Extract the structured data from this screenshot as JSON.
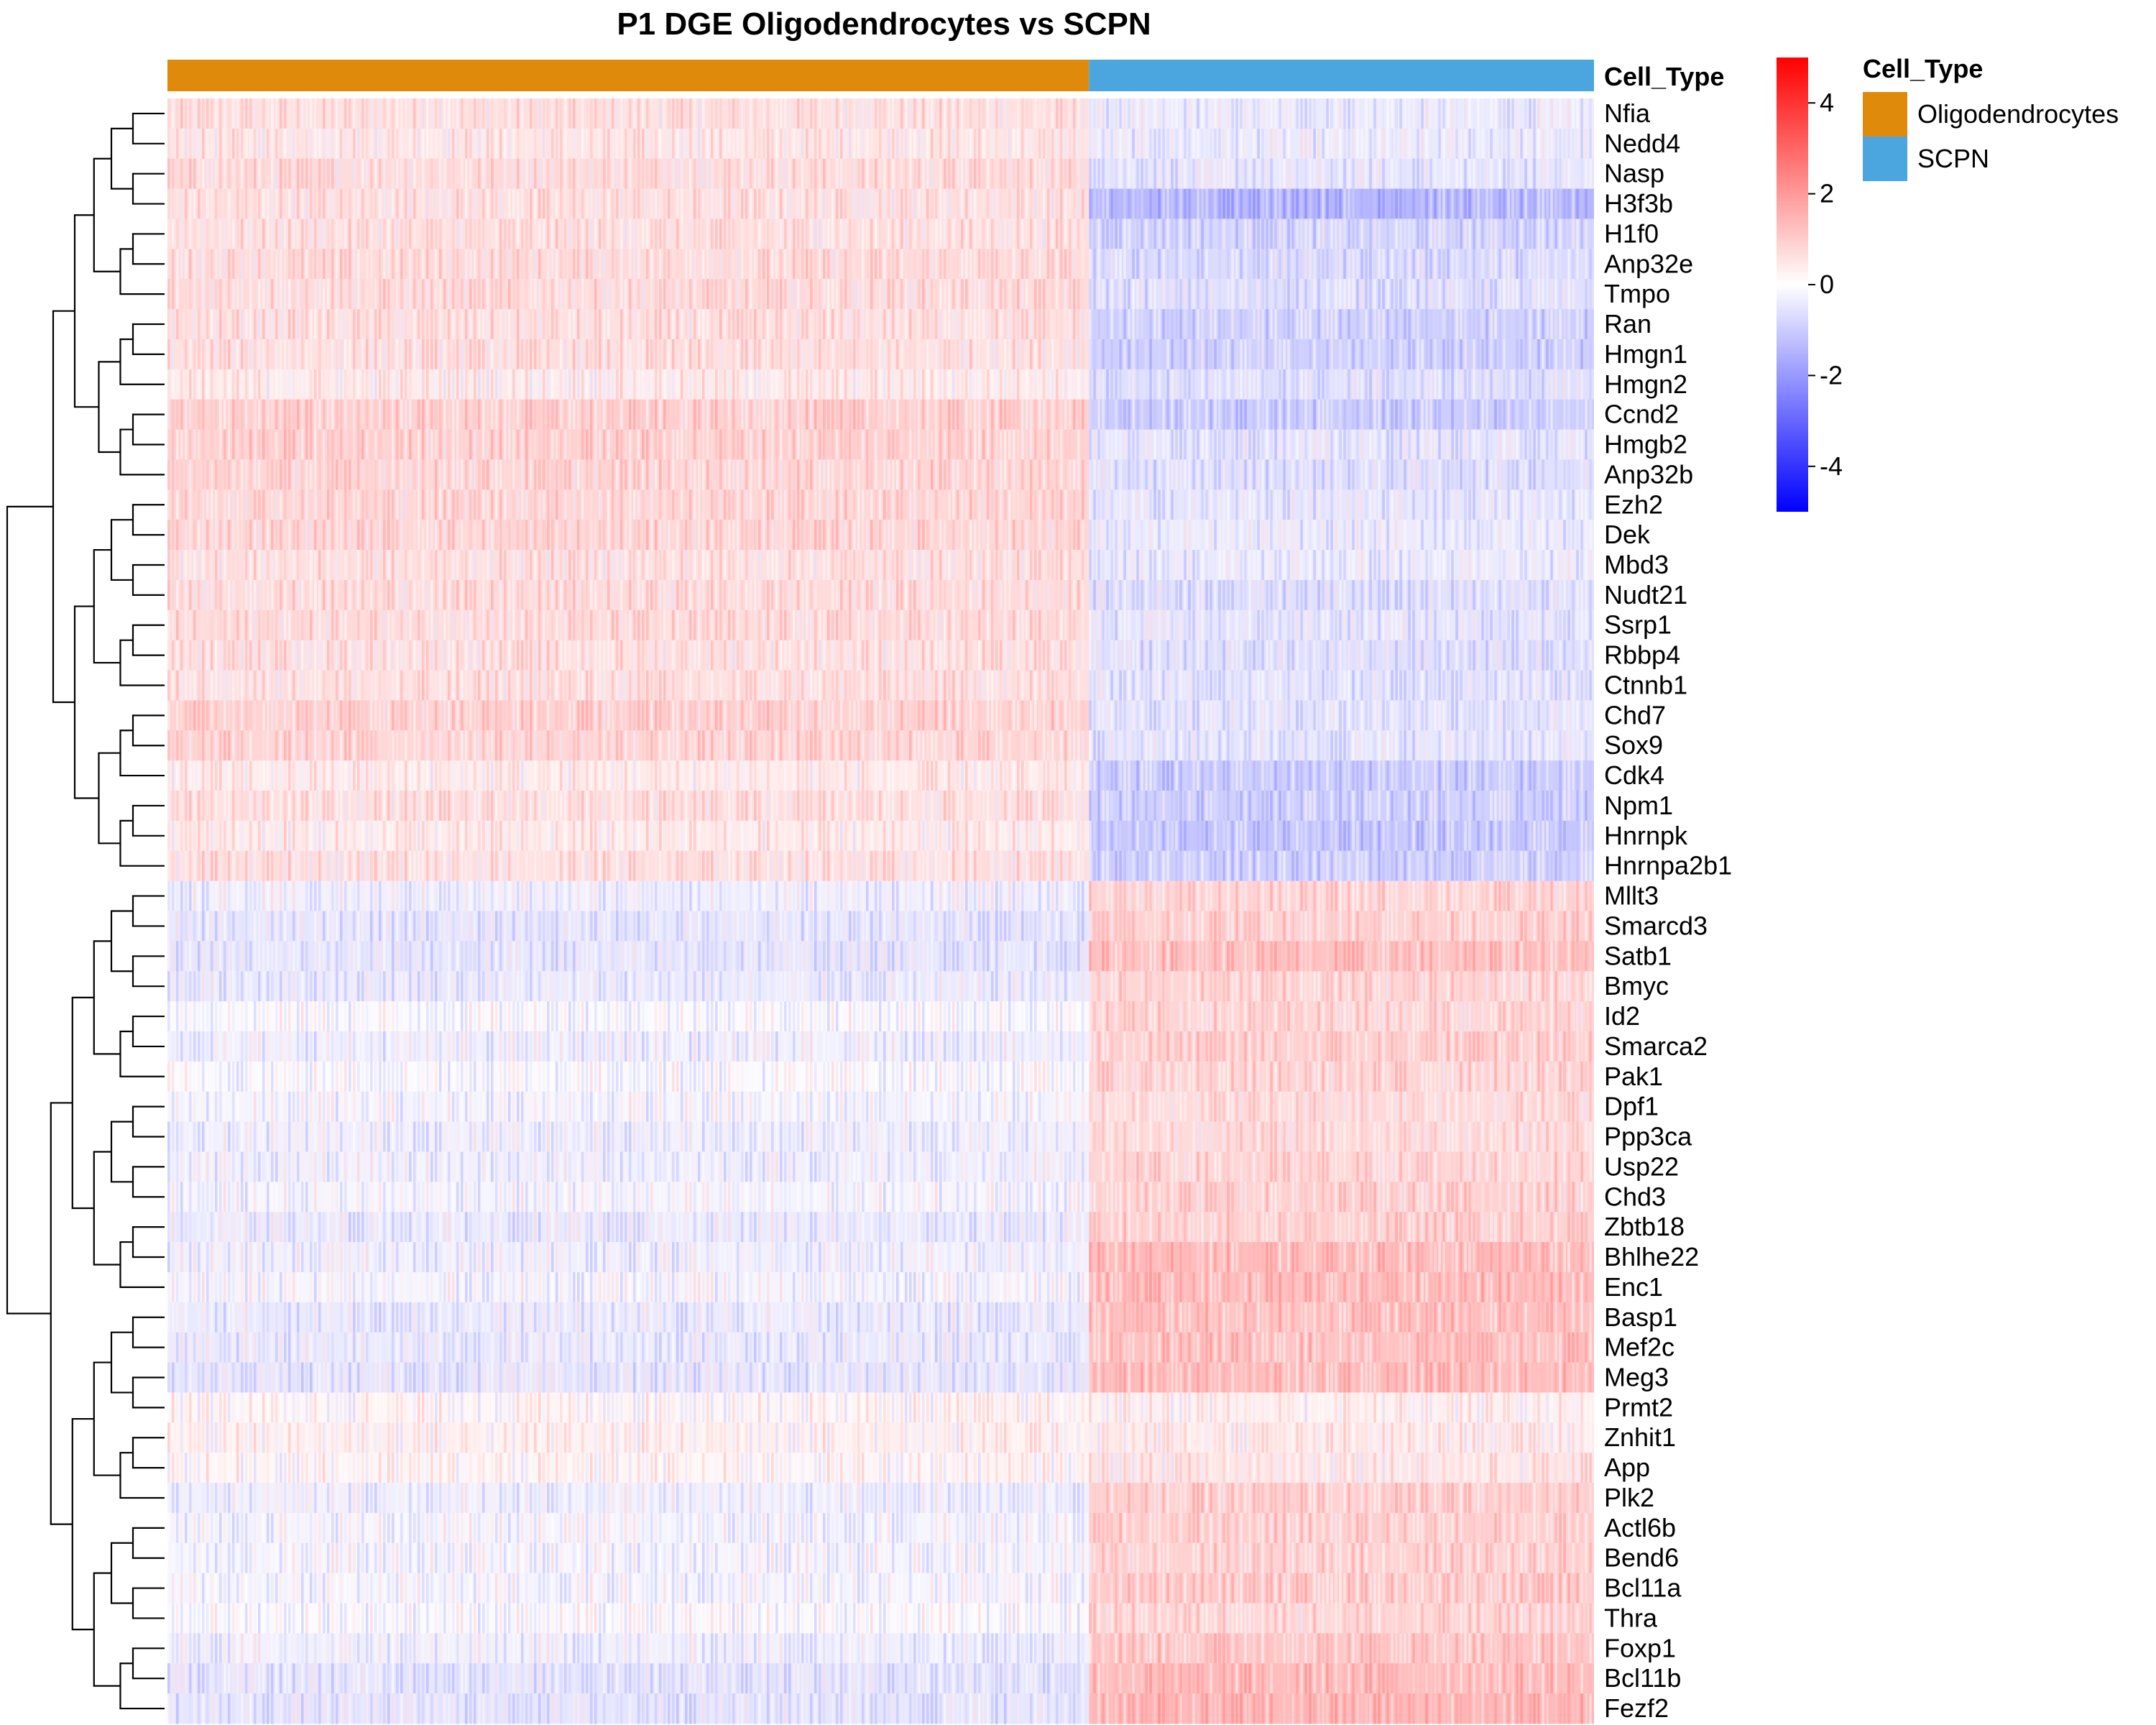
{
  "chart_data": {
    "type": "heatmap",
    "title": "P1 DGE Oligodendrocytes vs SCPN",
    "annotation": {
      "name": "Cell_Type",
      "groups": [
        {
          "name": "Oligodendrocytes",
          "color": "#E08A0B",
          "fraction": 0.646
        },
        {
          "name": "SCPN",
          "color": "#4BA6E0",
          "fraction": 0.354
        }
      ]
    },
    "genes": [
      "Nfia",
      "Nedd4",
      "Nasp",
      "H3f3b",
      "H1f0",
      "Anp32e",
      "Tmpo",
      "Ran",
      "Hmgn1",
      "Hmgn2",
      "Ccnd2",
      "Hmgb2",
      "Anp32b",
      "Ezh2",
      "Dek",
      "Mbd3",
      "Nudt21",
      "Ssrp1",
      "Rbbp4",
      "Ctnnb1",
      "Chd7",
      "Sox9",
      "Cdk4",
      "Npm1",
      "Hnrnpk",
      "Hnrnpa2b1",
      "Mllt3",
      "Smarcd3",
      "Satb1",
      "Bmyc",
      "Id2",
      "Smarca2",
      "Pak1",
      "Dpf1",
      "Ppp3ca",
      "Usp22",
      "Chd3",
      "Zbtb18",
      "Bhlhe22",
      "Enc1",
      "Basp1",
      "Mef2c",
      "Meg3",
      "Prmt2",
      "Znhit1",
      "App",
      "Plk2",
      "Actl6b",
      "Bend6",
      "Bcl11a",
      "Thra",
      "Foxp1",
      "Bcl11b",
      "Fezf2"
    ],
    "mean_scaled_expression": {
      "Oligodendrocytes": [
        0.6,
        0.5,
        0.7,
        0.6,
        0.6,
        0.7,
        0.7,
        0.6,
        0.6,
        0.4,
        0.9,
        0.9,
        0.8,
        0.8,
        0.8,
        0.6,
        0.7,
        0.7,
        0.6,
        0.6,
        0.9,
        0.8,
        0.4,
        0.6,
        0.4,
        0.6,
        -0.3,
        -0.5,
        -0.5,
        -0.4,
        -0.1,
        -0.3,
        -0.1,
        -0.2,
        -0.3,
        -0.3,
        -0.2,
        -0.4,
        -0.3,
        -0.2,
        -0.4,
        -0.4,
        -0.5,
        0.2,
        0.3,
        0.2,
        -0.3,
        -0.2,
        -0.2,
        -0.2,
        -0.1,
        -0.3,
        -0.5,
        -0.5
      ],
      "SCPN": [
        -0.4,
        -0.4,
        -0.5,
        -1.4,
        -0.8,
        -0.7,
        -0.6,
        -0.9,
        -0.9,
        -0.6,
        -1.0,
        -0.5,
        -0.6,
        -0.5,
        -0.4,
        -0.4,
        -0.6,
        -0.5,
        -0.6,
        -0.5,
        -0.5,
        -0.5,
        -1.0,
        -0.9,
        -1.1,
        -0.9,
        0.8,
        0.9,
        1.2,
        0.8,
        0.8,
        0.9,
        0.8,
        0.7,
        0.7,
        0.8,
        0.9,
        0.9,
        1.3,
        1.3,
        1.2,
        1.2,
        1.3,
        0.3,
        0.4,
        0.5,
        0.9,
        0.9,
        0.9,
        1.0,
        0.8,
        1.1,
        1.3,
        1.4
      ]
    },
    "colorbar": {
      "range": [
        -5,
        5
      ],
      "ticks": [
        4,
        2,
        0,
        -2,
        -4
      ],
      "tick_labels": [
        "4",
        "2",
        "0",
        "-2",
        "-4"
      ],
      "colors": {
        "low": "#0000FF",
        "mid": "#FFFFFF",
        "high": "#FF0000"
      }
    },
    "legend_placement": "right",
    "row_dendrogram": true
  }
}
